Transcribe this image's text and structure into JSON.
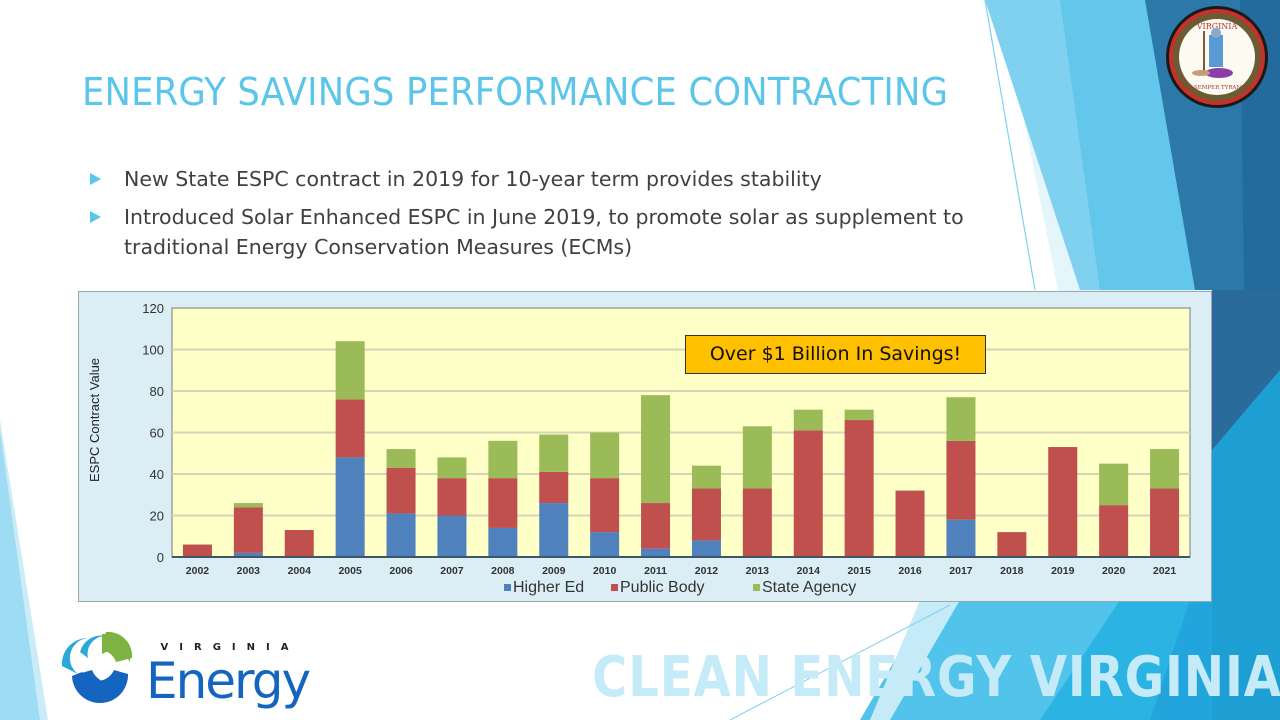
{
  "slide": {
    "title": "ENERGY SAVINGS PERFORMANCE CONTRACTING",
    "bullets": [
      "New State ESPC contract in 2019 for 10-year term provides stability",
      "Introduced Solar Enhanced ESPC in June 2019, to promote solar as supplement to traditional Energy Conservation Measures (ECMs)"
    ],
    "callout": "Over $1 Billion In Savings!",
    "footer": "CLEAN ENERGY VIRGINIA",
    "logo": {
      "top_text": "VIRGINIA",
      "main_text": "Energy"
    },
    "seal": {
      "top_text": "VIRGINIA",
      "bottom_text": "SIC SEMPER TYRANNIS"
    },
    "colors": {
      "title": "#5bc6ea",
      "callout_bg": "#ffc000",
      "footer_text": "#c6ebf8",
      "dark_blue": "#2a6b9c",
      "light_blue": "#5bc6ea"
    }
  },
  "chart_data": {
    "type": "bar",
    "stacked": true,
    "title": "",
    "xlabel": "",
    "ylabel": "ESPC Contract Value",
    "ylim": [
      0,
      120
    ],
    "yticks": [
      0,
      20,
      40,
      60,
      80,
      100,
      120
    ],
    "grid": true,
    "legend": "bottom",
    "categories": [
      "2002",
      "2003",
      "2004",
      "2005",
      "2006",
      "2007",
      "2008",
      "2009",
      "2010",
      "2011",
      "2012",
      "2013",
      "2014",
      "2015",
      "2016",
      "2017",
      "2018",
      "2019",
      "2020",
      "2021"
    ],
    "series": [
      {
        "name": "Higher Ed",
        "color": "#4f81bd",
        "values": [
          0,
          2,
          0,
          48,
          21,
          20,
          14,
          26,
          12,
          4,
          8,
          0,
          0,
          0,
          0,
          18,
          0,
          0,
          0,
          0
        ]
      },
      {
        "name": "Public Body",
        "color": "#c0504d",
        "values": [
          6,
          22,
          13,
          28,
          22,
          18,
          24,
          15,
          26,
          22,
          25,
          33,
          61,
          66,
          32,
          38,
          12,
          53,
          25,
          33
        ]
      },
      {
        "name": "State Agency",
        "color": "#9bbb59",
        "values": [
          0,
          2,
          0,
          28,
          9,
          10,
          18,
          18,
          22,
          52,
          11,
          30,
          10,
          5,
          0,
          21,
          0,
          0,
          20,
          19
        ]
      }
    ]
  }
}
